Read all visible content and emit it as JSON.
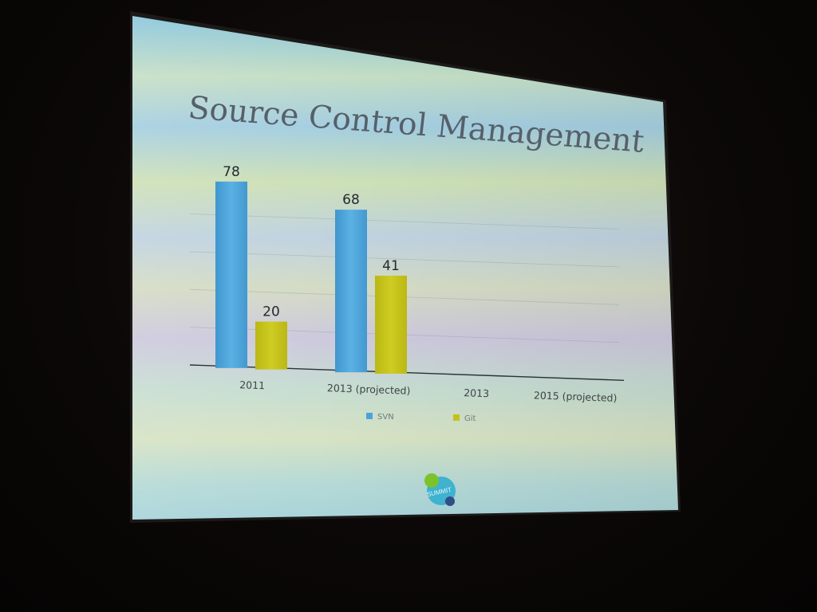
{
  "slide": {
    "title": "Source Control Management",
    "logo_text": "SUMMIT"
  },
  "colors": {
    "svn": "#4aa3d8",
    "git": "#c4c21a",
    "title": "#56606a"
  },
  "chart_data": {
    "type": "bar",
    "title": "Source Control Management",
    "categories": [
      "2011",
      "2013 (projected)",
      "2013",
      "2015 (projected)"
    ],
    "series": [
      {
        "name": "SVN",
        "values": [
          78,
          68,
          null,
          null
        ]
      },
      {
        "name": "Git",
        "values": [
          20,
          41,
          null,
          null
        ]
      }
    ],
    "ylim": [
      0,
      80
    ],
    "grid": true,
    "legend": "bottom",
    "xlabel": "",
    "ylabel": ""
  }
}
